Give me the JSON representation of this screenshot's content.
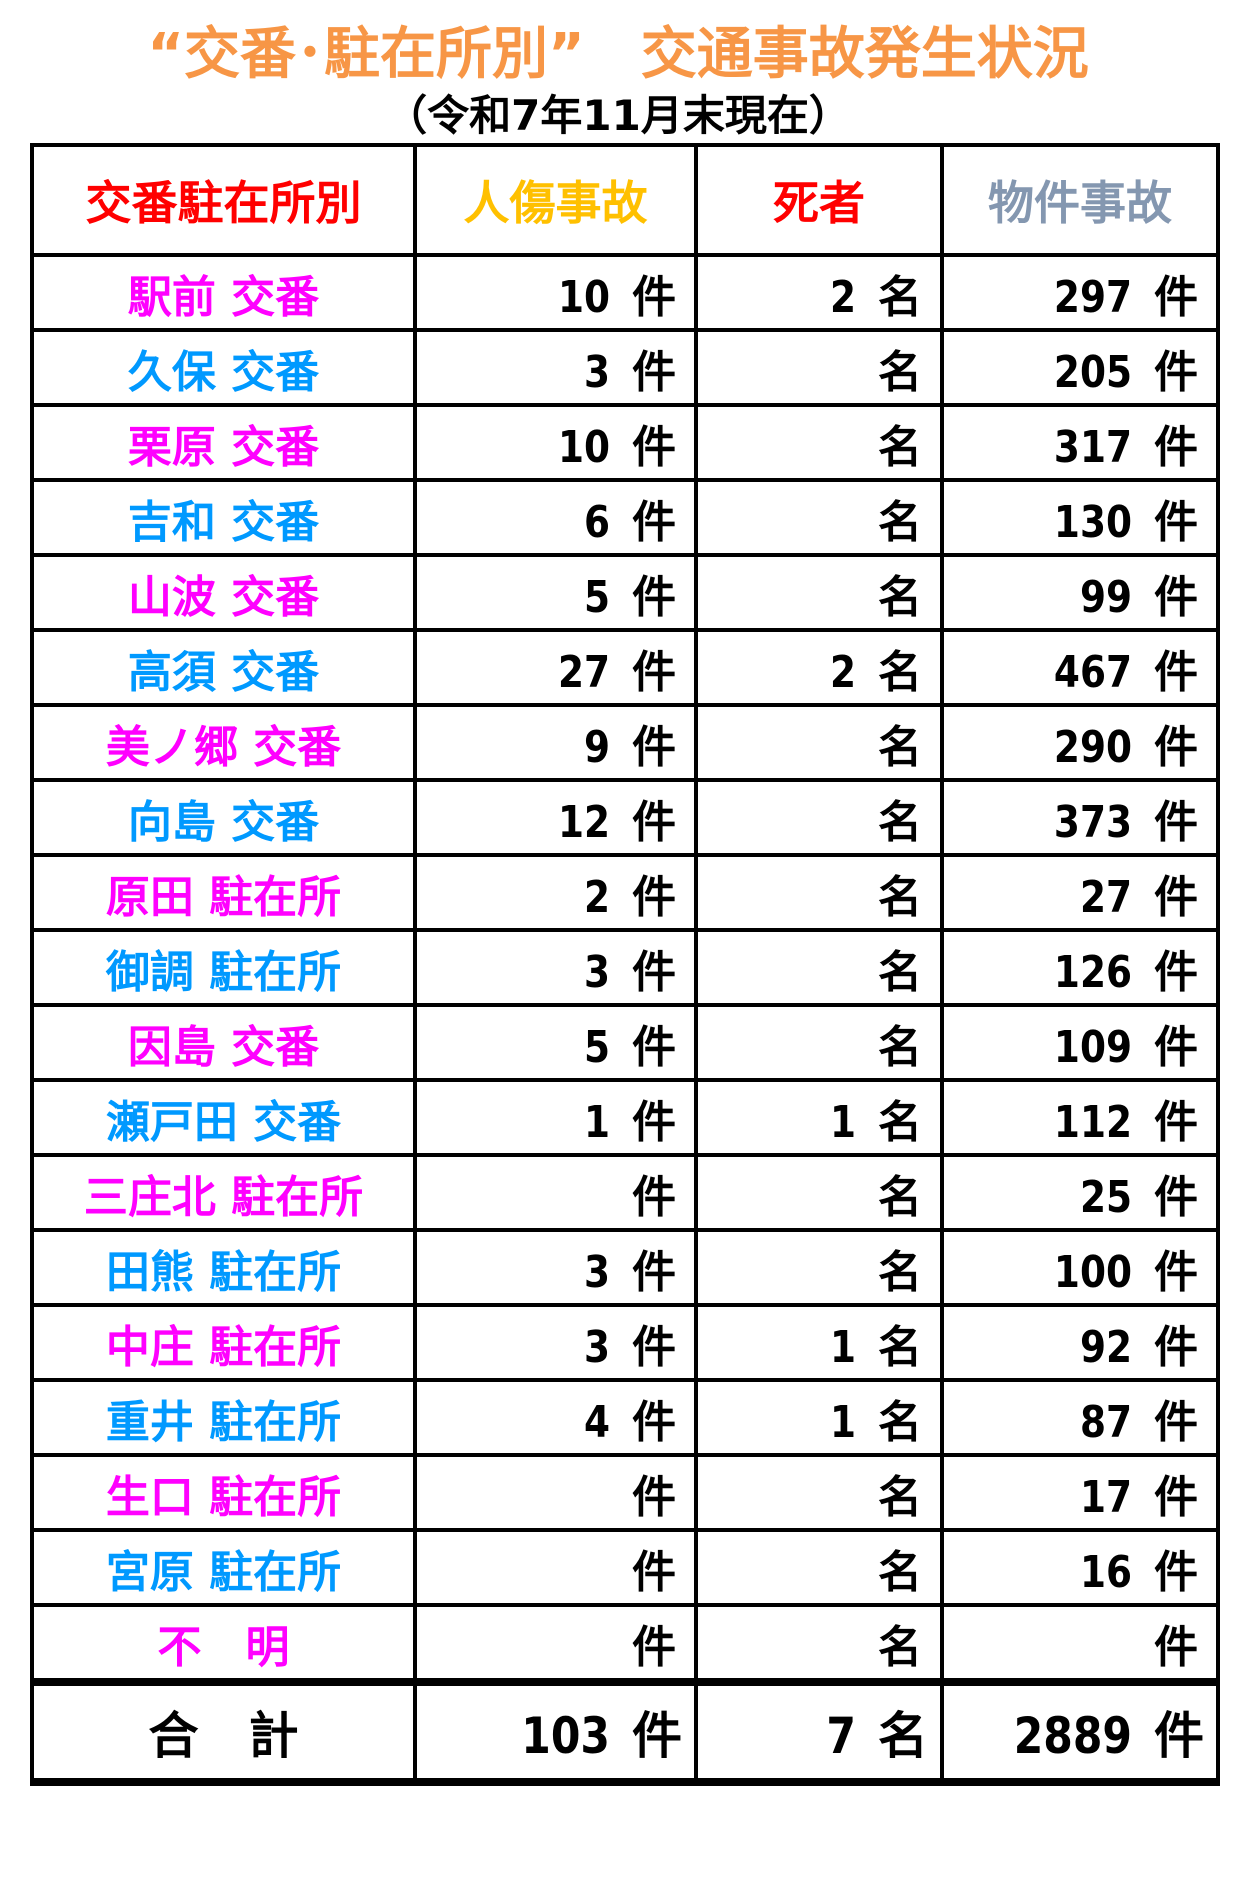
{
  "title": "“交番･駐在所別”　交通事故発生状況",
  "subtitle": "（令和7年11月末現在）",
  "colors": {
    "title": "#f79646",
    "magenta": "#ff00ff",
    "blue": "#0099ff",
    "header_station": "#ff0000",
    "header_injury": "#ffc000",
    "header_death": "#ff0000",
    "header_property": "#8497b0"
  },
  "headers": [
    "交番駐在所別",
    "人傷事故",
    "死者",
    "物件事故"
  ],
  "units": {
    "case": "件",
    "person": "名"
  },
  "rows": [
    {
      "name": "駅前 交番",
      "injury": "10",
      "deaths": "2",
      "property": "297",
      "color": "#ff00ff"
    },
    {
      "name": "久保 交番",
      "injury": "3",
      "deaths": "",
      "property": "205",
      "color": "#0099ff"
    },
    {
      "name": "栗原 交番",
      "injury": "10",
      "deaths": "",
      "property": "317",
      "color": "#ff00ff"
    },
    {
      "name": "吉和 交番",
      "injury": "6",
      "deaths": "",
      "property": "130",
      "color": "#0099ff"
    },
    {
      "name": "山波 交番",
      "injury": "5",
      "deaths": "",
      "property": "99",
      "color": "#ff00ff"
    },
    {
      "name": "高須 交番",
      "injury": "27",
      "deaths": "2",
      "property": "467",
      "color": "#0099ff"
    },
    {
      "name": "美ノ郷 交番",
      "injury": "9",
      "deaths": "",
      "property": "290",
      "color": "#ff00ff"
    },
    {
      "name": "向島 交番",
      "injury": "12",
      "deaths": "",
      "property": "373",
      "color": "#0099ff"
    },
    {
      "name": "原田 駐在所",
      "injury": "2",
      "deaths": "",
      "property": "27",
      "color": "#ff00ff"
    },
    {
      "name": "御調 駐在所",
      "injury": "3",
      "deaths": "",
      "property": "126",
      "color": "#0099ff"
    },
    {
      "name": "因島 交番",
      "injury": "5",
      "deaths": "",
      "property": "109",
      "color": "#ff00ff"
    },
    {
      "name": "瀬戸田 交番",
      "injury": "1",
      "deaths": "1",
      "property": "112",
      "color": "#0099ff"
    },
    {
      "name": "三庄北 駐在所",
      "injury": "",
      "deaths": "",
      "property": "25",
      "color": "#ff00ff"
    },
    {
      "name": "田熊 駐在所",
      "injury": "3",
      "deaths": "",
      "property": "100",
      "color": "#0099ff"
    },
    {
      "name": "中庄 駐在所",
      "injury": "3",
      "deaths": "1",
      "property": "92",
      "color": "#ff00ff"
    },
    {
      "name": "重井 駐在所",
      "injury": "4",
      "deaths": "1",
      "property": "87",
      "color": "#0099ff"
    },
    {
      "name": "生口 駐在所",
      "injury": "",
      "deaths": "",
      "property": "17",
      "color": "#ff00ff"
    },
    {
      "name": "宮原 駐在所",
      "injury": "",
      "deaths": "",
      "property": "16",
      "color": "#0099ff"
    },
    {
      "name": "不　明",
      "injury": "",
      "deaths": "",
      "property": "",
      "color": "#ff00ff"
    }
  ],
  "total": {
    "name": "合　計",
    "injury": "103",
    "deaths": "7",
    "property": "2889"
  }
}
